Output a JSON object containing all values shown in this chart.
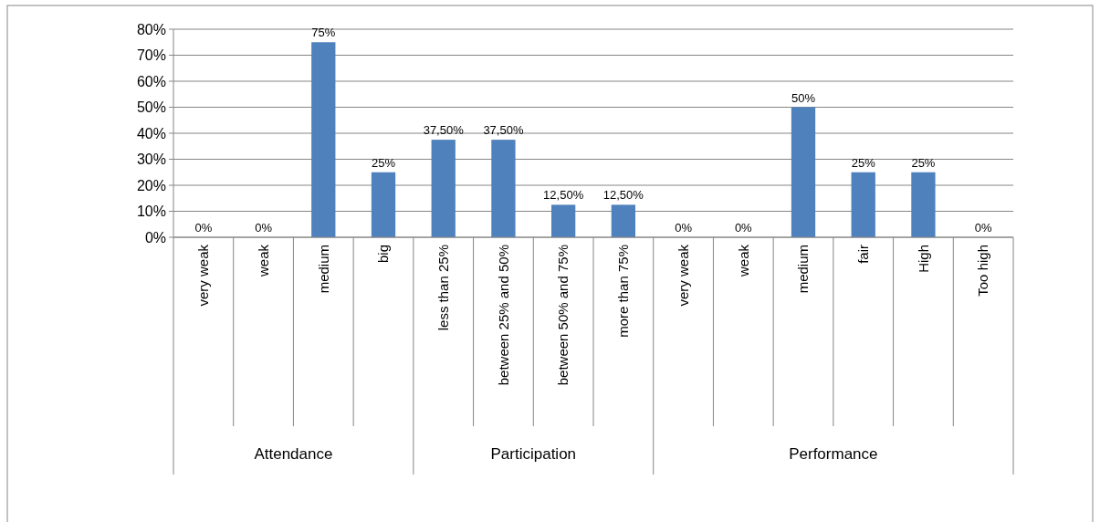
{
  "chart_data": {
    "type": "bar",
    "categories": [
      "very weak",
      "weak",
      "medium",
      "big",
      "less than 25%",
      "between 25% and 50%",
      "between 50% and 75%",
      "more than 75%",
      "very weak",
      "weak",
      "medium",
      "fair",
      "High",
      "Too high"
    ],
    "values": [
      0,
      0,
      75,
      25,
      37.5,
      37.5,
      12.5,
      12.5,
      0,
      0,
      50,
      25,
      25,
      0
    ],
    "value_labels": [
      "0%",
      "0%",
      "75%",
      "25%",
      "37,50%",
      "37,50%",
      "12,50%",
      "12,50%",
      "0%",
      "0%",
      "50%",
      "25%",
      "25%",
      "0%"
    ],
    "color": "#4f81bd",
    "ylim": [
      0,
      80
    ],
    "yticks": [
      {
        "value": 0,
        "label": "0%"
      },
      {
        "value": 10,
        "label": "10%"
      },
      {
        "value": 20,
        "label": "20%"
      },
      {
        "value": 30,
        "label": "30%"
      },
      {
        "value": 40,
        "label": "40%"
      },
      {
        "value": 50,
        "label": "50%"
      },
      {
        "value": 60,
        "label": "60%"
      },
      {
        "value": 70,
        "label": "70%"
      },
      {
        "value": 80,
        "label": "80%"
      }
    ],
    "grid": "y",
    "annotations": [
      "Attendance",
      "Participation",
      "Performance"
    ]
  }
}
